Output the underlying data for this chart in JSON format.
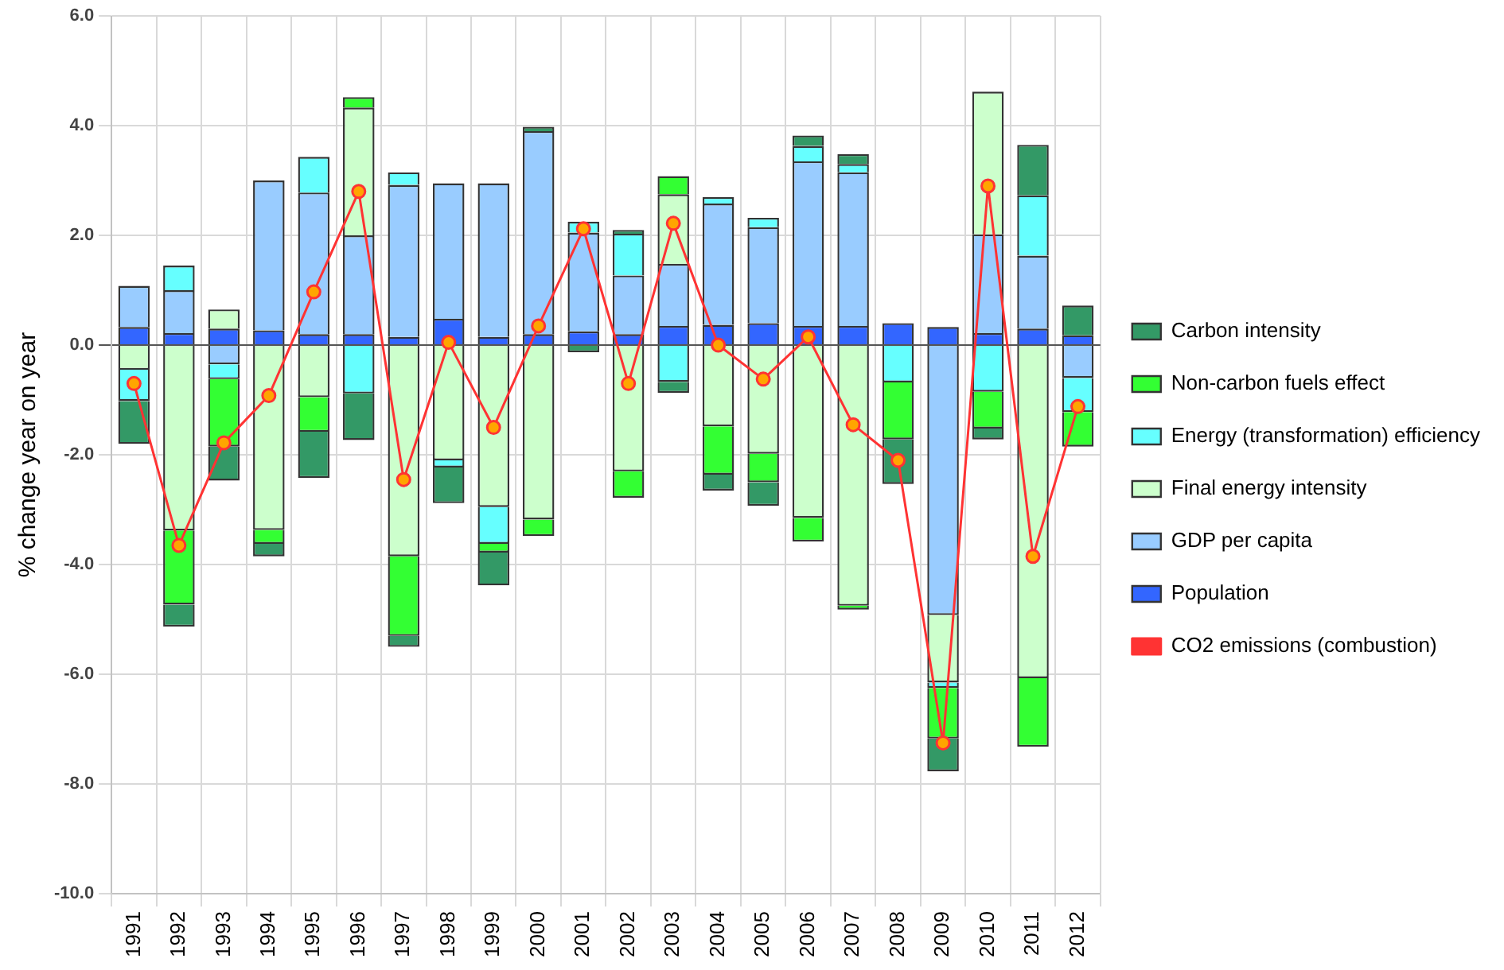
{
  "chart_data": {
    "type": "bar",
    "stacked": true,
    "ylabel": "% change year on year",
    "categories": [
      "1991",
      "1992",
      "1993",
      "1994",
      "1995",
      "1996",
      "1997",
      "1998",
      "1999",
      "2000",
      "2001",
      "2002",
      "2003",
      "2004",
      "2005",
      "2006",
      "2007",
      "2008",
      "2009",
      "2010",
      "2011",
      "2012"
    ],
    "series": [
      {
        "name": "Population",
        "color": "#3366ff",
        "values": [
          0.33,
          0.22,
          0.3,
          0.27,
          0.2,
          0.2,
          0.15,
          0.48,
          0.15,
          0.2,
          0.25,
          0.2,
          0.35,
          0.37,
          0.4,
          0.35,
          0.35,
          0.4,
          0.33,
          0.22,
          0.3,
          0.18
        ]
      },
      {
        "name": "GDP per capita",
        "color": "#99ccff",
        "values": [
          0.75,
          0.78,
          -0.35,
          2.73,
          2.58,
          1.8,
          2.77,
          2.47,
          2.8,
          3.7,
          1.8,
          1.07,
          1.13,
          2.21,
          1.75,
          3.0,
          2.8,
          null,
          -4.92,
          1.8,
          1.33,
          -0.6
        ]
      },
      {
        "name": "Final energy intensity",
        "color": "#ccffcc",
        "values": [
          -0.45,
          -3.38,
          0.35,
          -3.37,
          -0.95,
          2.33,
          -3.85,
          -2.1,
          -2.95,
          -3.18,
          null,
          -2.3,
          1.27,
          -1.48,
          -1.98,
          -3.15,
          -4.75,
          null,
          -1.23,
          2.6,
          -6.07,
          null
        ]
      },
      {
        "name": "Energy (transformation) efficiency",
        "color": "#66ffff",
        "values": [
          -0.57,
          0.45,
          -0.27,
          null,
          0.65,
          -0.88,
          0.23,
          -0.13,
          -0.67,
          null,
          0.2,
          0.76,
          -0.67,
          0.12,
          0.17,
          0.28,
          0.15,
          -0.68,
          -0.1,
          -0.85,
          1.1,
          -0.62
        ]
      },
      {
        "name": "Non-carbon fuels effect",
        "color": "#33ff33",
        "values": [
          null,
          -1.35,
          -1.23,
          -0.25,
          -0.63,
          0.19,
          -1.45,
          null,
          -0.16,
          -0.3,
          null,
          -0.48,
          0.33,
          -0.88,
          -0.52,
          -0.43,
          -0.07,
          -1.04,
          -0.92,
          -0.67,
          -1.25,
          -0.63
        ]
      },
      {
        "name": "Carbon intensity",
        "color": "#339966",
        "values": [
          -0.78,
          -0.4,
          -0.62,
          -0.23,
          -0.84,
          -0.85,
          -0.2,
          -0.65,
          -0.6,
          0.08,
          -0.13,
          0.07,
          -0.2,
          -0.29,
          -0.43,
          0.19,
          0.18,
          -0.81,
          -0.6,
          -0.2,
          0.92,
          0.54
        ]
      },
      {
        "name": "CO2 emissions (combustion)",
        "type": "line",
        "color": "#ff3333",
        "values": [
          -0.7,
          -3.65,
          -1.78,
          -0.92,
          0.97,
          2.8,
          -2.45,
          0.05,
          -1.5,
          0.35,
          2.12,
          -0.7,
          2.22,
          0.0,
          -0.62,
          0.15,
          -1.45,
          -2.1,
          -7.25,
          2.9,
          -3.85,
          -1.12
        ]
      }
    ],
    "ylim": [
      -10,
      6
    ],
    "yticks": [
      {
        "value": -10,
        "label": "-10.0"
      },
      {
        "value": -8,
        "label": "-8.0"
      },
      {
        "value": -6,
        "label": "-6.0"
      },
      {
        "value": -4,
        "label": "-4.0"
      },
      {
        "value": -2,
        "label": "-2.0"
      },
      {
        "value": 0,
        "label": "0.0"
      },
      {
        "value": 2,
        "label": "2.0"
      },
      {
        "value": 4,
        "label": "4.0"
      },
      {
        "value": 6,
        "label": "6.0"
      }
    ],
    "grid": true,
    "legend": "right",
    "marker": "circle",
    "line_style": "solid"
  }
}
